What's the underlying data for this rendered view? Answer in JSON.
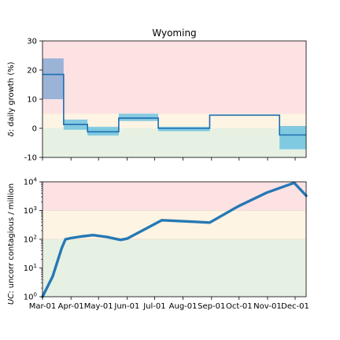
{
  "chart_data": [
    {
      "type": "step",
      "title": "Wyoming",
      "ylabel": "δ: daily growth (%)",
      "ylabel_symbol": "δ",
      "ylabel_rest": ": daily growth (%)",
      "ylim": [
        -10,
        30
      ],
      "yticks": [
        -10,
        0,
        10,
        20,
        30
      ],
      "zones": [
        {
          "from": 5,
          "to": 30,
          "color": "#fde2e4"
        },
        {
          "from": 0,
          "to": 5,
          "color": "#fdf4e3"
        },
        {
          "from": -10,
          "to": 0,
          "color": "#e6f1e3"
        }
      ],
      "segments": [
        {
          "start": "2020-03-01",
          "end": "2020-03-24",
          "value": 18.5,
          "low": 10,
          "high": 24
        },
        {
          "start": "2020-03-24",
          "end": "2020-04-19",
          "value": 1.3,
          "low": -0.5,
          "high": 3
        },
        {
          "start": "2020-04-19",
          "end": "2020-05-23",
          "value": -1.2,
          "low": -2.5,
          "high": 0.5
        },
        {
          "start": "2020-05-23",
          "end": "2020-07-05",
          "value": 3.5,
          "low": 2.5,
          "high": 5
        },
        {
          "start": "2020-07-05",
          "end": "2020-08-30",
          "value": 0,
          "low": -1,
          "high": 0.5
        },
        {
          "start": "2020-08-30",
          "end": "2020-11-14",
          "value": 4.5,
          "low": 4.5,
          "high": 4.5
        },
        {
          "start": "2020-11-14",
          "end": "2020-12-13",
          "value": -2.3,
          "low": -7.2,
          "high": 0.8
        }
      ],
      "band_colors": [
        "#4a8ccc",
        "#5cbce0"
      ],
      "line_color": "#1f6eb0"
    },
    {
      "type": "line",
      "ylabel": "UC: uncorr contagious / million",
      "ylabel_symbol": "UC",
      "ylabel_rest": ": uncorr contagious / million",
      "yscale": "log",
      "ylim": [
        1,
        10000
      ],
      "yticks": [
        "10^0",
        "10^1",
        "10^2",
        "10^3",
        "10^4"
      ],
      "zones": [
        {
          "from": 1000,
          "to": 10000,
          "color": "#fde2e4"
        },
        {
          "from": 100,
          "to": 1000,
          "color": "#fdf4e3"
        },
        {
          "from": 1,
          "to": 100,
          "color": "#e6f1e3"
        }
      ],
      "line_color": "#2678b5",
      "x": [
        "2020-03-01",
        "2020-03-12",
        "2020-03-22",
        "2020-03-26",
        "2020-04-01",
        "2020-04-12",
        "2020-04-25",
        "2020-05-10",
        "2020-05-25",
        "2020-06-01",
        "2020-06-20",
        "2020-07-09",
        "2020-08-05",
        "2020-08-30",
        "2020-09-30",
        "2020-10-31",
        "2020-11-30",
        "2020-12-13"
      ],
      "y": [
        1,
        5,
        50,
        100,
        110,
        125,
        140,
        120,
        95,
        105,
        220,
        460,
        420,
        380,
        1400,
        4200,
        9200,
        3300
      ]
    }
  ],
  "xaxis": {
    "range": [
      "2020-03-01",
      "2020-12-13"
    ],
    "ticks": [
      {
        "date": "2020-03-01",
        "label": "Mar-01"
      },
      {
        "date": "2020-04-01",
        "label": "Apr-01"
      },
      {
        "date": "2020-05-01",
        "label": "May-01"
      },
      {
        "date": "2020-06-01",
        "label": "Jun-01"
      },
      {
        "date": "2020-07-01",
        "label": "Jul-01"
      },
      {
        "date": "2020-08-01",
        "label": "Aug-01"
      },
      {
        "date": "2020-09-01",
        "label": "Sep-01"
      },
      {
        "date": "2020-10-01",
        "label": "Oct-01"
      },
      {
        "date": "2020-11-01",
        "label": "Nov-01"
      },
      {
        "date": "2020-12-01",
        "label": "Dec-01"
      }
    ]
  }
}
